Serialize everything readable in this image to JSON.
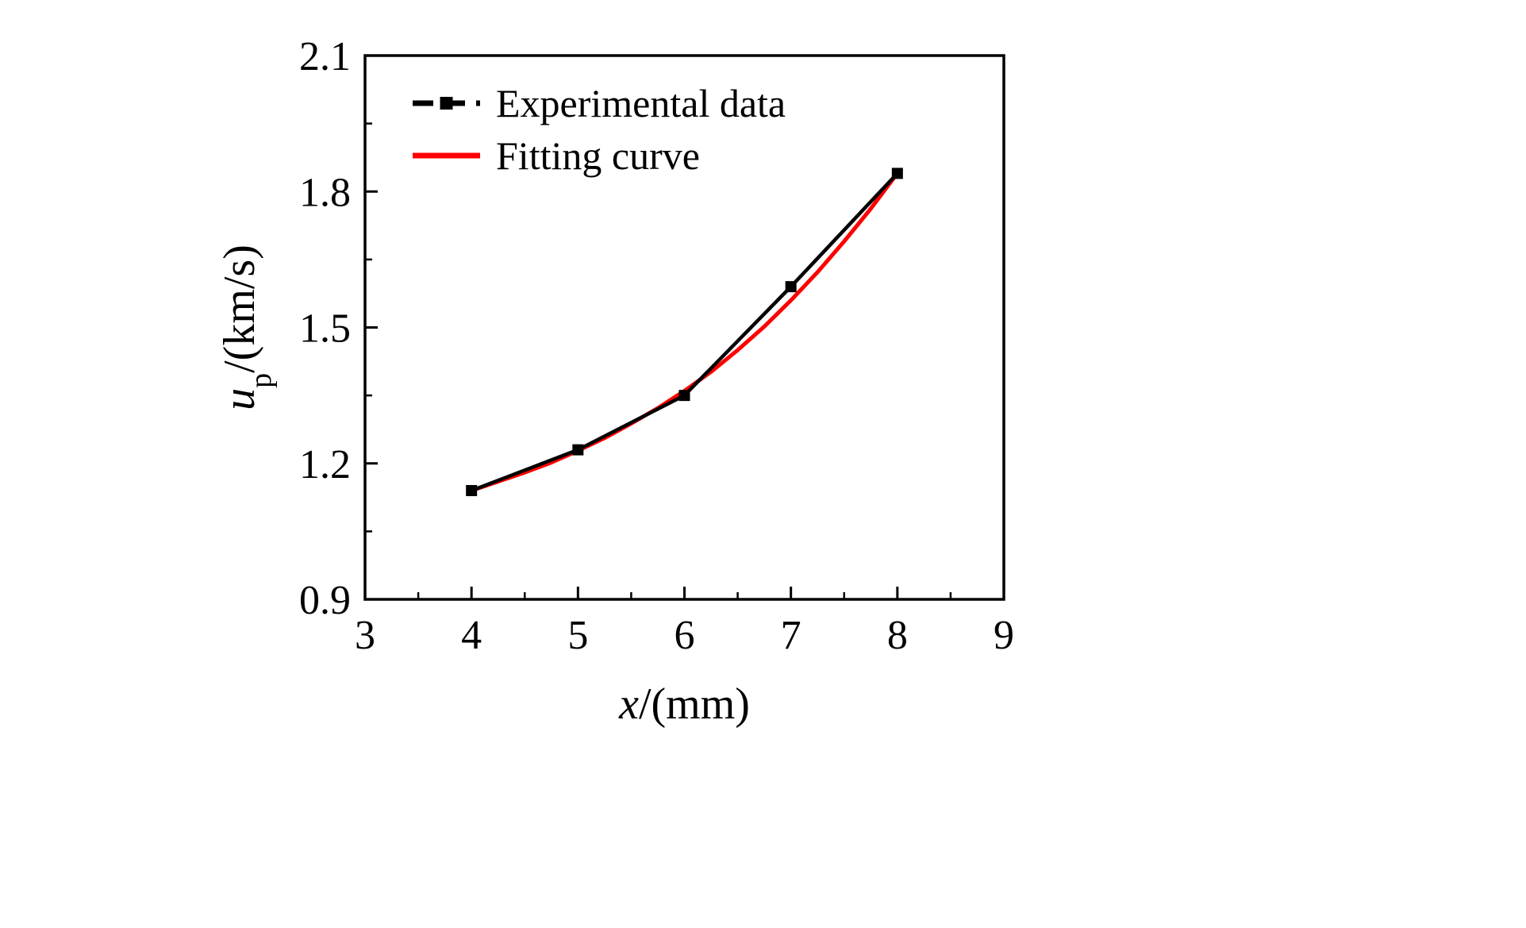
{
  "chart_data": {
    "type": "line",
    "title": "",
    "xlabel": {
      "italic": "x",
      "rest": "/(mm)"
    },
    "ylabel": {
      "italic": "u",
      "sub": "p",
      "rest": "/(km/s)"
    },
    "xlim": [
      3,
      9
    ],
    "ylim": [
      0.9,
      2.1
    ],
    "xticks": [
      3,
      4,
      5,
      6,
      7,
      8,
      9
    ],
    "yticks": [
      0.9,
      1.2,
      1.5,
      1.8,
      2.1
    ],
    "x_minor_step": 0.5,
    "y_minor_step": 0.15,
    "grid": false,
    "legend_position": "top-left",
    "colors": {
      "experimental": "#000000",
      "fit": "#ff0000",
      "axis": "#000000"
    },
    "series": [
      {
        "name": "Experimental data",
        "color": "#000000",
        "style": "line-with-square-markers",
        "x": [
          4,
          5,
          6,
          7,
          8
        ],
        "y": [
          1.14,
          1.23,
          1.35,
          1.59,
          1.84
        ]
      },
      {
        "name": "Fitting curve",
        "color": "#ff0000",
        "style": "smooth-solid",
        "x": [
          4,
          4.25,
          4.5,
          4.75,
          5,
          5.25,
          5.5,
          5.75,
          6,
          6.25,
          6.5,
          6.75,
          7,
          7.25,
          7.5,
          7.75,
          8
        ],
        "y": [
          1.14,
          1.16,
          1.18,
          1.202,
          1.228,
          1.256,
          1.288,
          1.322,
          1.36,
          1.402,
          1.45,
          1.502,
          1.56,
          1.622,
          1.69,
          1.762,
          1.84
        ]
      }
    ]
  }
}
